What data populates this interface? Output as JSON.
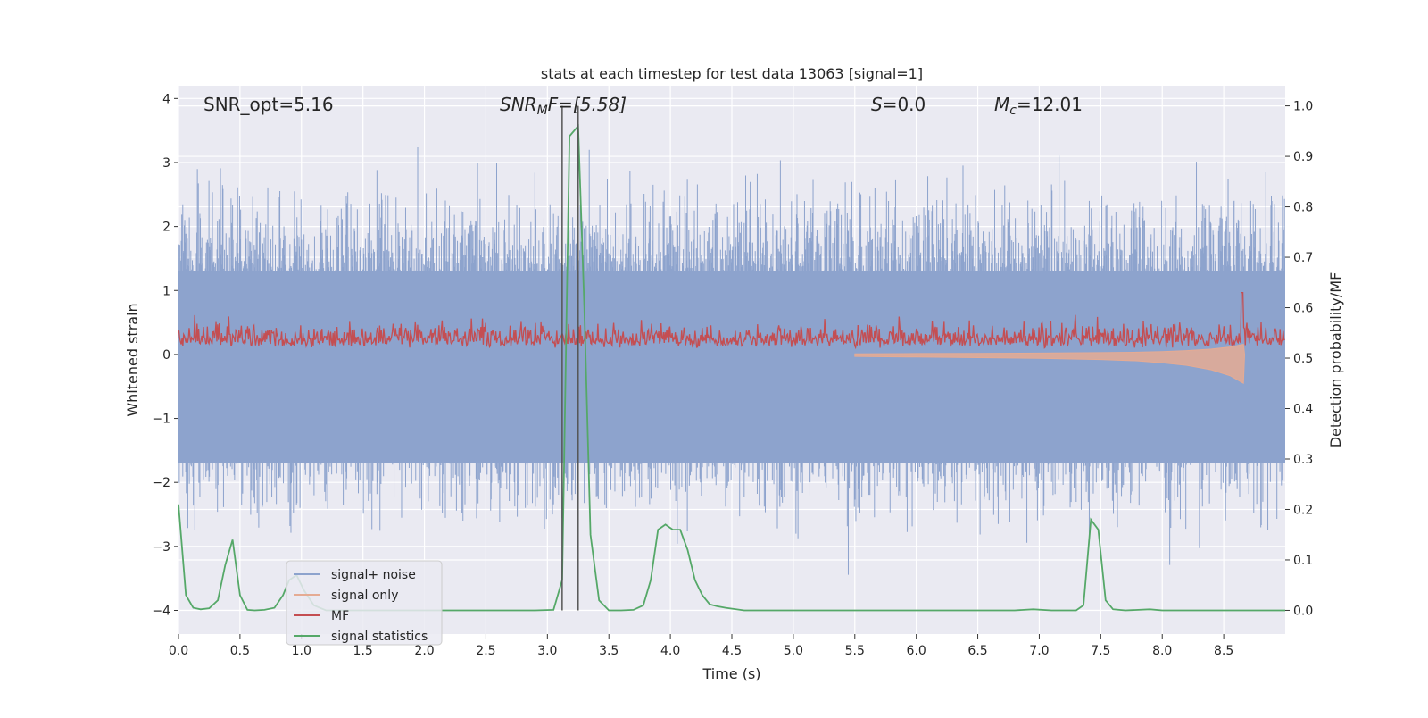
{
  "chart_data": {
    "type": "line",
    "title": "stats at each timestep for test data 13063 [signal=1]",
    "xlabel": "Time (s)",
    "ylabel": "Whitened strain",
    "ylabel_right": "Detection probability/MF",
    "xlim": [
      0.0,
      9.0
    ],
    "ylim": [
      -4.37,
      4.2
    ],
    "ylim_right": [
      -0.047,
      1.04
    ],
    "xticks": [
      "0.0",
      "0.5",
      "1.0",
      "1.5",
      "2.0",
      "2.5",
      "3.0",
      "3.5",
      "4.0",
      "4.5",
      "5.0",
      "5.5",
      "6.0",
      "6.5",
      "7.0",
      "7.5",
      "8.0",
      "8.5"
    ],
    "yticks": [
      "−4",
      "−3",
      "−2",
      "−1",
      "0",
      "1",
      "2",
      "3",
      "4"
    ],
    "yticks_right": [
      "0.0",
      "0.1",
      "0.2",
      "0.3",
      "0.4",
      "0.5",
      "0.6",
      "0.7",
      "0.8",
      "0.9",
      "1.0"
    ],
    "grid": true,
    "legend_placement": "lower-left",
    "annotations": {
      "snr_opt": "SNR_opt=5.16",
      "snr_mf_symbol": "SNR",
      "snr_mf_subscript": "M",
      "snr_mf_value": "F=[5.58]",
      "s_symbol": "S",
      "s_value": "=0.0",
      "mc_symbol": "M",
      "mc_subscript": "c",
      "mc_value": "=12.01"
    },
    "vertical_lines_x": [
      3.12,
      3.25
    ],
    "series": [
      {
        "name": "signal+ noise",
        "color": "#8da3cd",
        "axis": "left",
        "description_range": [
          -3.5,
          3.5
        ]
      },
      {
        "name": "signal only",
        "color": "#e5ab93",
        "axis": "left",
        "envelope_x": [
          5.5,
          6.0,
          6.5,
          7.0,
          7.5,
          7.8,
          8.0,
          8.2,
          8.4,
          8.55,
          8.66,
          8.67
        ],
        "envelope_y": [
          0.03,
          0.04,
          0.05,
          0.06,
          0.08,
          0.1,
          0.13,
          0.17,
          0.24,
          0.33,
          0.45,
          0.0
        ]
      },
      {
        "name": "MF",
        "color": "#c44e52",
        "axis": "right",
        "description_range": [
          0.5,
          0.62
        ],
        "spike_x": 8.65,
        "spike_y": 0.63
      },
      {
        "name": "signal statistics",
        "color": "#55a868",
        "axis": "right",
        "x": [
          0.0,
          0.06,
          0.12,
          0.18,
          0.25,
          0.32,
          0.38,
          0.44,
          0.5,
          0.56,
          0.62,
          0.7,
          0.78,
          0.85,
          0.9,
          0.96,
          1.02,
          1.1,
          1.2,
          1.5,
          2.0,
          2.5,
          2.9,
          3.05,
          3.12,
          3.18,
          3.25,
          3.3,
          3.35,
          3.42,
          3.5,
          3.6,
          3.7,
          3.78,
          3.84,
          3.9,
          3.96,
          4.02,
          4.08,
          4.14,
          4.2,
          4.26,
          4.32,
          4.38,
          4.45,
          4.6,
          4.7,
          5.0,
          6.0,
          6.8,
          6.95,
          7.1,
          7.3,
          7.36,
          7.42,
          7.48,
          7.54,
          7.6,
          7.7,
          7.9,
          8.0,
          8.5,
          9.0
        ],
        "y": [
          0.21,
          0.03,
          0.005,
          0.002,
          0.004,
          0.02,
          0.09,
          0.14,
          0.03,
          0.001,
          0.0,
          0.001,
          0.005,
          0.03,
          0.06,
          0.07,
          0.04,
          0.01,
          0.0,
          0.0,
          0.0,
          0.0,
          0.0,
          0.001,
          0.06,
          0.94,
          0.96,
          0.6,
          0.15,
          0.02,
          0.0,
          0.0,
          0.001,
          0.01,
          0.06,
          0.16,
          0.17,
          0.16,
          0.16,
          0.12,
          0.06,
          0.03,
          0.012,
          0.008,
          0.005,
          0.0,
          0.0,
          0.0,
          0.0,
          0.0,
          0.002,
          0.0,
          0.0,
          0.01,
          0.18,
          0.16,
          0.02,
          0.002,
          0.0,
          0.002,
          0.0,
          0.0,
          0.0
        ]
      }
    ]
  }
}
